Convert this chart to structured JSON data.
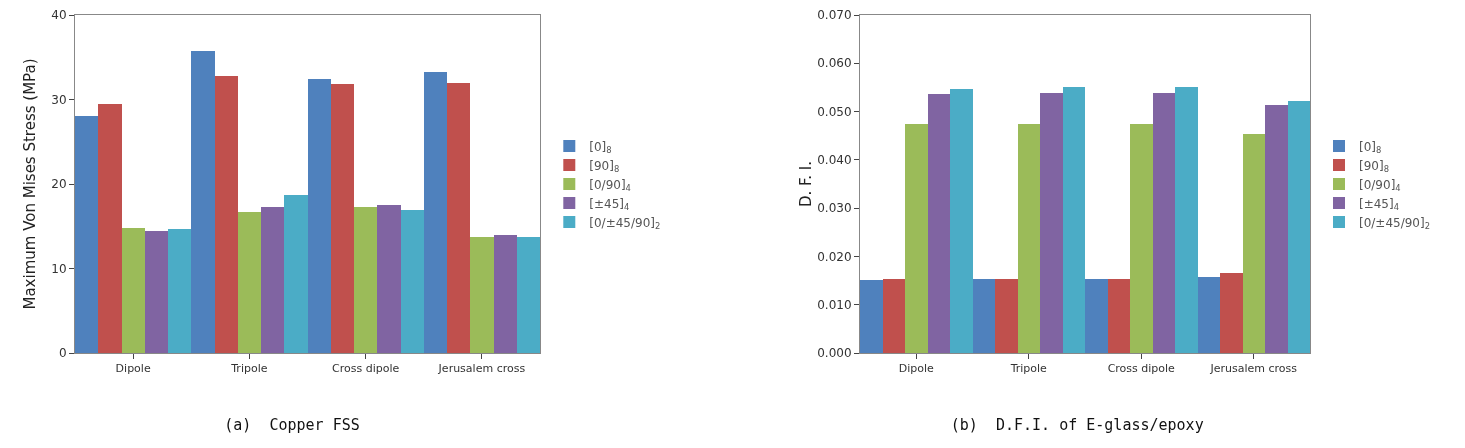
{
  "chart_data": [
    {
      "type": "bar",
      "title": "(a)  Copper FSS",
      "ylabel": "Maximum Von Mises Stress (MPa)",
      "categories": [
        "Dipole",
        "Tripole",
        "Cross dipole",
        "Jerusalem cross"
      ],
      "ylim": [
        0,
        40
      ],
      "yticks": [
        0,
        10,
        20,
        30,
        40
      ],
      "grid": false,
      "legend": "right",
      "series": [
        {
          "name": "[0]$_{8}$",
          "color": "#4f81bd",
          "values": [
            28.1,
            35.7,
            32.4,
            33.2
          ]
        },
        {
          "name": "[90]$_{8}$",
          "color": "#c0504d",
          "values": [
            29.5,
            32.8,
            31.8,
            32.0
          ]
        },
        {
          "name": "[0/90]$_{4}$",
          "color": "#9bbb59",
          "values": [
            14.8,
            16.7,
            17.3,
            13.7
          ]
        },
        {
          "name": "[±45]$_{4}$",
          "color": "#8064a2",
          "values": [
            14.4,
            17.3,
            17.5,
            14.0
          ]
        },
        {
          "name": "[0/±45/90]$_{2}$",
          "color": "#4bacc6",
          "values": [
            14.7,
            18.7,
            16.9,
            13.7
          ]
        }
      ]
    },
    {
      "type": "bar",
      "title": "(b)  D.F.I. of E-glass/epoxy",
      "ylabel": "D. F. I.",
      "categories": [
        "Dipole",
        "Tripole",
        "Cross dipole",
        "Jerusalem cross"
      ],
      "ylim": [
        0,
        0.07
      ],
      "yticks": [
        {
          "value": 0,
          "label": "0.000"
        },
        {
          "value": 0.01,
          "label": "0.010"
        },
        {
          "value": 0.02,
          "label": "0.020"
        },
        {
          "value": 0.03,
          "label": "0.030"
        },
        {
          "value": 0.04,
          "label": "0.040"
        },
        {
          "value": 0.05,
          "label": "0.050"
        },
        {
          "value": 0.06,
          "label": "0.060"
        },
        {
          "value": 0.07,
          "label": "0.070"
        }
      ],
      "grid": false,
      "legend": "right",
      "series": [
        {
          "name": "[0]$_{8}$",
          "color": "#4f81bd",
          "values": [
            0.0151,
            0.0154,
            0.0154,
            0.0158
          ]
        },
        {
          "name": "[90]$_{8}$",
          "color": "#c0504d",
          "values": [
            0.0153,
            0.0154,
            0.0154,
            0.0165
          ]
        },
        {
          "name": "[0/90]$_{4}$",
          "color": "#9bbb59",
          "values": [
            0.0475,
            0.0475,
            0.0475,
            0.0453
          ]
        },
        {
          "name": "[±45]$_{4}$",
          "color": "#8064a2",
          "values": [
            0.0537,
            0.0539,
            0.0539,
            0.0513
          ]
        },
        {
          "name": "[0/±45/90]$_{2}$",
          "color": "#4bacc6",
          "values": [
            0.0546,
            0.0551,
            0.0551,
            0.0522
          ]
        }
      ]
    }
  ]
}
